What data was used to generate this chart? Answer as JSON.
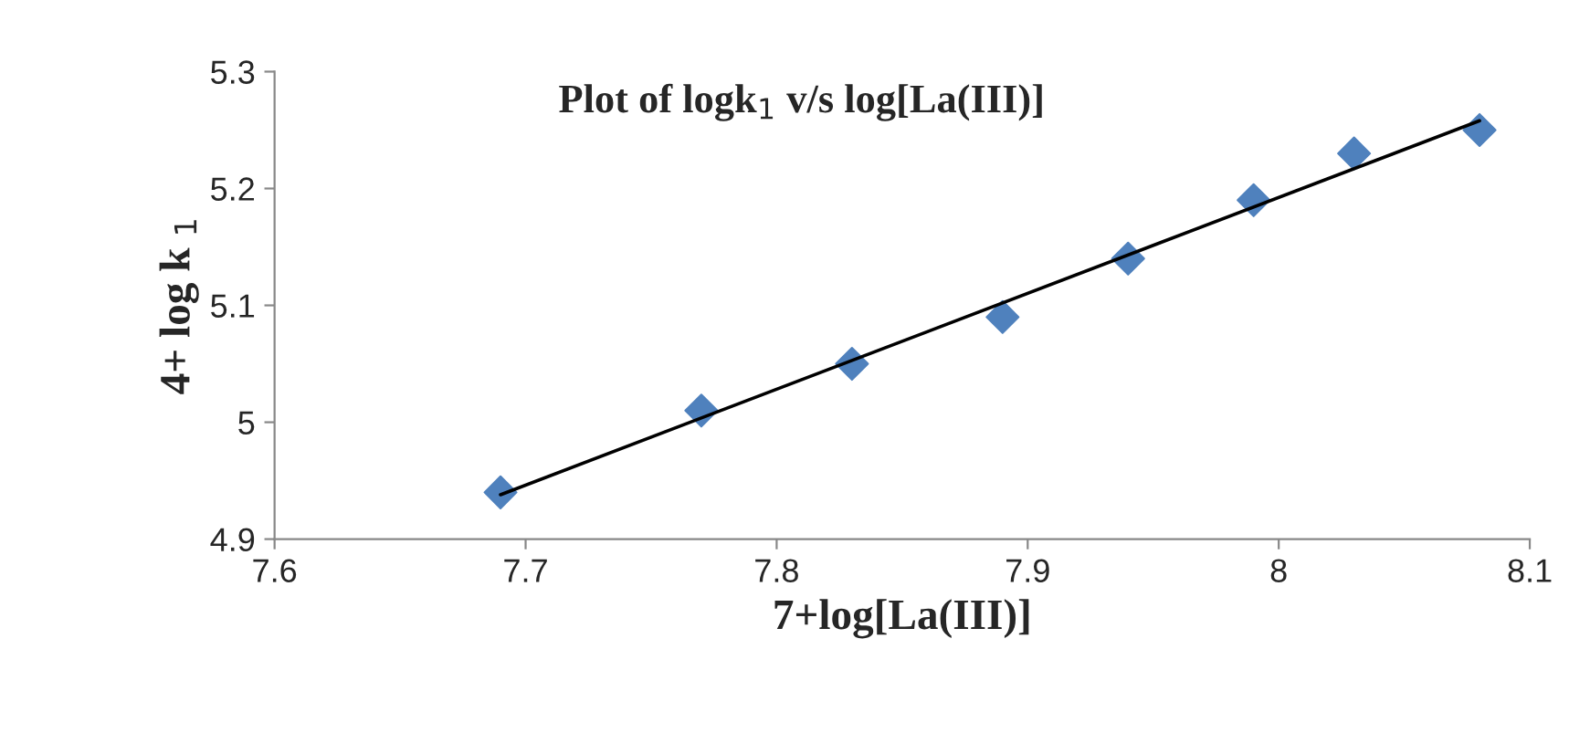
{
  "chart_data": {
    "type": "scatter",
    "title": "Plot of logk$_{1}$ v/s log[La(III)]",
    "xlabel": "7+log[La(III)]",
    "ylabel": "4+ log k $_{1}$",
    "x": [
      7.69,
      7.77,
      7.83,
      7.89,
      7.94,
      7.99,
      8.03,
      8.08
    ],
    "series": [
      {
        "color": "#4f81bd",
        "marker": "diamond",
        "values": [
          4.94,
          5.01,
          5.05,
          5.09,
          5.14,
          5.19,
          5.23,
          5.25
        ]
      },
      {
        "type": "line",
        "color": "#000000",
        "marker": "none",
        "x": [
          7.69,
          8.08
        ],
        "values": [
          4.938,
          5.258
        ]
      }
    ],
    "xlim": [
      7.6,
      8.1
    ],
    "xticks": [
      7.6,
      7.7,
      7.8,
      7.9,
      8,
      8.1
    ],
    "ylim": [
      4.9,
      5.3
    ],
    "yticks": [
      4.9,
      5,
      5.1,
      5.2,
      5.3
    ],
    "grid": false,
    "legend": false
  }
}
